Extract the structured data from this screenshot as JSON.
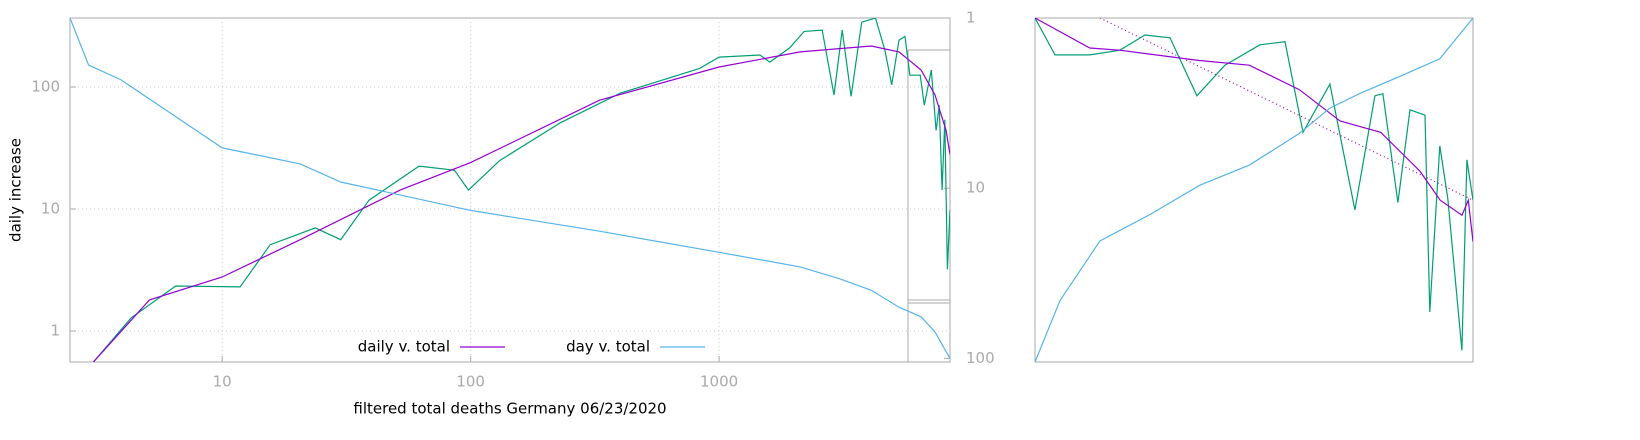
{
  "chart_data": [
    {
      "type": "line",
      "xlabel": "filtered total deaths Germany 06/23/2020",
      "ylabel": "daily increase",
      "xscale": "log",
      "yscale": "log",
      "y2scale": "log",
      "xlim": [
        2.44,
        8500
      ],
      "ylim": [
        0.557,
        368
      ],
      "y2lim": [
        105,
        1
      ],
      "xticks": [
        10,
        100,
        1000
      ],
      "yticks": [
        1,
        10,
        100
      ],
      "y2ticks": [
        1,
        10,
        100
      ],
      "grid": true,
      "legend": "bottom",
      "series": [
        {
          "color": "#009e73",
          "x": [
            3.03,
            4.3,
            6.5,
            11.8,
            15.6,
            23.7,
            30,
            39,
            62,
            86,
            98,
            131,
            230,
            400,
            835,
            1000,
            1460,
            1600,
            1920,
            2200,
            2600,
            2900,
            3130,
            3400,
            3750,
            4260,
            4650,
            4950,
            5300,
            5600,
            5860,
            6450,
            6700,
            7150,
            7470,
            7690,
            7900,
            8100,
            8300,
            8500
          ],
          "values": [
            0.557,
            1.28,
            2.34,
            2.3,
            5.1,
            7,
            5.6,
            11.8,
            22.5,
            20.8,
            14.3,
            25,
            51,
            89,
            142,
            176,
            183,
            160,
            209,
            286,
            293,
            86,
            293,
            84,
            340,
            368,
            200,
            104,
            242,
            260,
            125,
            125,
            71,
            138,
            44,
            71,
            14.3,
            54,
            3.2,
            9.8
          ]
        },
        {
          "name": "daily v. total",
          "color": "#9400d3",
          "x": [
            3.03,
            5.1,
            10,
            20.6,
            52,
            100,
            330,
            1000,
            2120,
            4100,
            5300,
            6500,
            7400,
            8200,
            8500
          ],
          "values": [
            0.557,
            1.8,
            2.77,
            5.6,
            14.3,
            24,
            78,
            146,
            194,
            217,
            194,
            138,
            86,
            44,
            28
          ]
        },
        {
          "name": "day v. total",
          "color": "#56b4e9",
          "axis": "y2",
          "x": [
            2.44,
            2.9,
            3.9,
            10,
            20.6,
            30,
            100,
            330,
            1000,
            2120,
            3050,
            4100,
            5300,
            6500,
            7400,
            8500
          ],
          "values": [
            1,
            1.89,
            2.3,
            5.8,
            7.2,
            9.2,
            13.5,
            17.9,
            23.8,
            29,
            34,
            39.8,
            50,
            57,
            70,
            100
          ]
        }
      ]
    },
    {
      "type": "line",
      "xscale": "linear",
      "yscale": "log",
      "y2scale": "log",
      "xlim": [
        5700,
        8500
      ],
      "ylim": [
        1.7,
        200
      ],
      "y2lim": [
        50,
        100
      ],
      "series": [
        {
          "color": "#9400d3",
          "style": "dotted",
          "x": [
            6115,
            8500
          ],
          "values": [
            200,
            16
          ]
        },
        {
          "color": "#009e73",
          "x": [
            5700,
            5828,
            6051,
            6243,
            6403,
            6563,
            6735,
            6914,
            7138,
            7298,
            7413,
            7585,
            7745,
            7873,
            7924,
            8020,
            8097,
            8193,
            8224,
            8288,
            8339,
            8429,
            8461,
            8500
          ],
          "values": [
            200,
            120,
            120,
            128,
            158,
            152,
            68,
            104,
            138,
            144,
            41,
            80,
            14,
            68,
            70,
            15.5,
            56,
            52,
            3.4,
            34,
            16.4,
            2,
            28,
            16
          ]
        },
        {
          "color": "#9400d3",
          "x": [
            5700,
            6050,
            6240,
            6750,
            7070,
            7390,
            7650,
            7910,
            8160,
            8290,
            8430,
            8470,
            8500
          ],
          "values": [
            200,
            132,
            128,
            111,
            104,
            74,
            48,
            41,
            24,
            16,
            13,
            16,
            9
          ]
        },
        {
          "color": "#56b4e9",
          "axis": "y2",
          "x": [
            5700,
            5860,
            6115,
            6435,
            6754,
            7074,
            7393,
            7585,
            7777,
            8032,
            8288,
            8500
          ],
          "values": [
            50,
            56.6,
            63.8,
            67.3,
            71.4,
            74.4,
            79.3,
            83.4,
            85.9,
            88.9,
            92.1,
            100
          ]
        }
      ]
    }
  ]
}
